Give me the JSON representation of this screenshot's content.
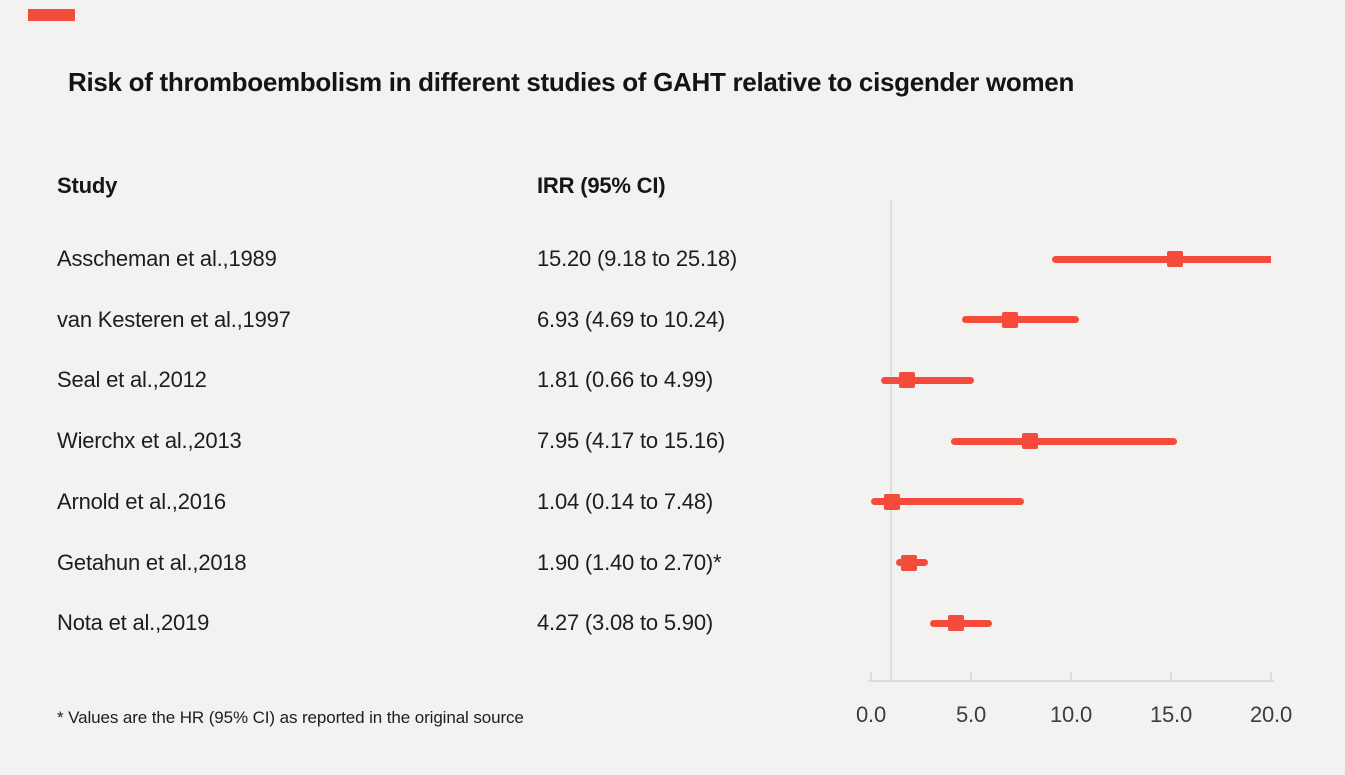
{
  "page": {
    "background_color": "#f2f2f1",
    "accent_color": "#f54b3d"
  },
  "header": {
    "title": "Risk of thromboembolism in different studies of GAHT relative to cisgender women"
  },
  "table": {
    "study_header": "Study",
    "irr_header": "IRR (95% CI)"
  },
  "footnote": "* Values are the HR (95% CI) as reported in the original source",
  "chart_data": {
    "type": "scatter",
    "variant": "forest-plot",
    "title": "Risk of thromboembolism in different studies of GAHT relative to cisgender women",
    "effect_measure": "IRR (95% CI)",
    "x_axis": {
      "min": 0,
      "max": 20,
      "ticks": [
        0,
        5,
        10,
        15,
        20
      ],
      "tick_labels": [
        "0.0",
        "5.0",
        "10.0",
        "15.0",
        "20.0"
      ]
    },
    "reference_line_x": 1.0,
    "grid": false,
    "marker_color": "#f54b3d",
    "axis_color": "#d9dde2",
    "studies": [
      {
        "label": "Asscheman et al.,1989",
        "irr_text": "15.20 (9.18 to 25.18)",
        "estimate": 15.2,
        "ci_low": 9.18,
        "ci_high": 25.18
      },
      {
        "label": "van Kesteren et al.,1997",
        "irr_text": "6.93 (4.69 to 10.24)",
        "estimate": 6.93,
        "ci_low": 4.69,
        "ci_high": 10.24
      },
      {
        "label": "Seal et al.,2012",
        "irr_text": "1.81 (0.66 to 4.99)",
        "estimate": 1.81,
        "ci_low": 0.66,
        "ci_high": 4.99
      },
      {
        "label": "Wierchx et al.,2013",
        "irr_text": "7.95 (4.17 to 15.16)",
        "estimate": 7.95,
        "ci_low": 4.17,
        "ci_high": 15.16
      },
      {
        "label": "Arnold et al.,2016",
        "irr_text": "1.04 (0.14 to 7.48)",
        "estimate": 1.04,
        "ci_low": 0.14,
        "ci_high": 7.48
      },
      {
        "label": "Getahun et al.,2018",
        "irr_text": "1.90 (1.40 to 2.70)*",
        "estimate": 1.9,
        "ci_low": 1.4,
        "ci_high": 2.7
      },
      {
        "label": "Nota et al.,2019",
        "irr_text": "4.27 (3.08 to 5.90)",
        "estimate": 4.27,
        "ci_low": 3.08,
        "ci_high": 5.9
      }
    ],
    "footnote": "* Values are the HR (95% CI) as reported in the original source"
  }
}
